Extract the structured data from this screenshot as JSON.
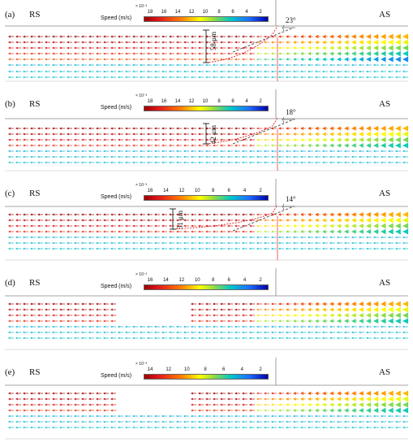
{
  "panels": [
    {
      "label": "(a)",
      "rs": "RS",
      "as": "AS",
      "colorbar": {
        "title": "Speed (m/s)",
        "exponent": "× 10⁻³",
        "ticks": [
          "18",
          "16",
          "14",
          "12",
          "10",
          "8",
          "6",
          "4",
          "2"
        ]
      },
      "thickness": "58 μm",
      "angle": "23°"
    },
    {
      "label": "(b)",
      "rs": "RS",
      "as": "AS",
      "colorbar": {
        "title": "Speed (m/s)",
        "exponent": "× 10⁻³",
        "ticks": [
          "18",
          "16",
          "14",
          "12",
          "10",
          "8",
          "6",
          "4",
          "2"
        ]
      },
      "thickness": "42 μm",
      "angle": "18°"
    },
    {
      "label": "(c)",
      "rs": "RS",
      "as": "AS",
      "colorbar": {
        "title": "Speed (m/s)",
        "exponent": "× 10⁻³",
        "ticks": [
          "16",
          "14",
          "12",
          "10",
          "8",
          "6",
          "4",
          "2"
        ]
      },
      "thickness": "31 μm",
      "angle": "14°"
    },
    {
      "label": "(d)",
      "rs": "RS",
      "as": "AS",
      "colorbar": {
        "title": "Speed (m/s)",
        "exponent": "× 10⁻³",
        "ticks": [
          "16",
          "14",
          "12",
          "10",
          "8",
          "6",
          "4",
          "2"
        ]
      },
      "thickness": "",
      "angle": ""
    },
    {
      "label": "(e)",
      "rs": "RS",
      "as": "AS",
      "colorbar": {
        "title": "Speed (m/s)",
        "exponent": "× 10⁻³",
        "ticks": [
          "14",
          "12",
          "10",
          "8",
          "6",
          "4",
          "2"
        ]
      },
      "thickness": "",
      "angle": ""
    }
  ],
  "colors": {
    "high": "#b00000",
    "mid": "#ffd700",
    "low": "#00b7c7",
    "boundary": "#e00000",
    "tool_line": "#555555"
  }
}
